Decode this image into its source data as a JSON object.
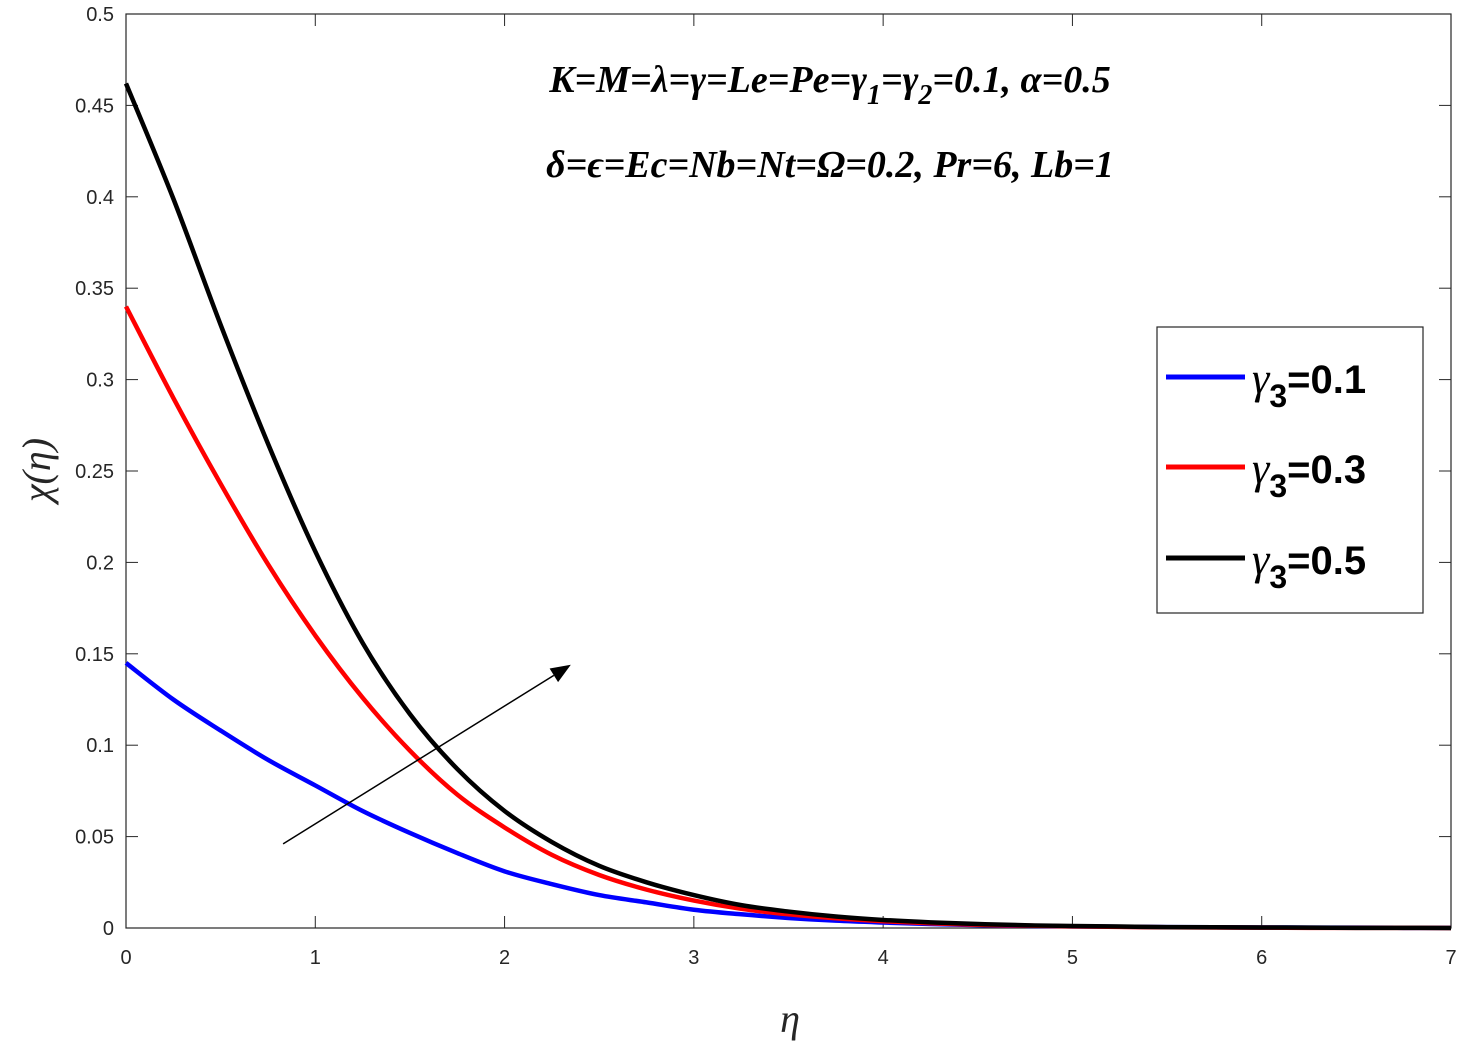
{
  "chart_data": {
    "type": "line",
    "xlabel": "η",
    "ylabel": "χ(η)",
    "xlim": [
      0,
      7
    ],
    "ylim": [
      0,
      0.5
    ],
    "xticks": [
      "0",
      "1",
      "2",
      "3",
      "4",
      "5",
      "6",
      "7"
    ],
    "yticks": [
      "0",
      "0.05",
      "0.1",
      "0.15",
      "0.2",
      "0.25",
      "0.3",
      "0.35",
      "0.4",
      "0.45",
      "0.5"
    ],
    "grid": false,
    "legend_position": "right",
    "annotations": [
      "K=M=λ=γ=Le=Pe=γ1=γ2=0.1, α=0.5",
      "δ=ϵ=Ec=Nb=Nt=Ω=0.2, Pr=6, Lb=1"
    ],
    "arrow": {
      "from": [
        0.83,
        0.046
      ],
      "to": [
        2.35,
        0.144
      ],
      "meaning": "increasing γ3"
    },
    "x": [
      0,
      0.25,
      0.5,
      0.75,
      1,
      1.25,
      1.5,
      1.75,
      2,
      2.25,
      2.5,
      2.75,
      3,
      3.25,
      3.5,
      3.75,
      4,
      4.25,
      4.5,
      4.75,
      5,
      5.25,
      5.5,
      5.75,
      6,
      6.25,
      6.5,
      6.75,
      7
    ],
    "series": [
      {
        "name": "γ3=0.1",
        "color": "#0000ff",
        "values": [
          0.145,
          0.125,
          0.108,
          0.092,
          0.078,
          0.064,
          0.052,
          0.041,
          0.031,
          0.024,
          0.018,
          0.014,
          0.01,
          0.0075,
          0.0055,
          0.004,
          0.003,
          0.0022,
          0.0016,
          0.0012,
          0.0009,
          0.0007,
          0.0005,
          0.0004,
          0.0003,
          0.0002,
          0.0002,
          0.0001,
          0.0001
        ]
      },
      {
        "name": "γ3=0.3",
        "color": "#ff0000",
        "values": [
          0.34,
          0.29,
          0.243,
          0.199,
          0.16,
          0.126,
          0.097,
          0.073,
          0.055,
          0.04,
          0.029,
          0.021,
          0.015,
          0.0105,
          0.0075,
          0.0053,
          0.0037,
          0.0026,
          0.0018,
          0.0013,
          0.0009,
          0.0006,
          0.0004,
          0.0003,
          0.0002,
          0.0001,
          0.0001,
          0.0001,
          0.0
        ]
      },
      {
        "name": "γ3=0.5",
        "color": "#000000",
        "values": [
          0.462,
          0.399,
          0.33,
          0.265,
          0.206,
          0.156,
          0.117,
          0.087,
          0.064,
          0.047,
          0.034,
          0.025,
          0.018,
          0.0125,
          0.009,
          0.0063,
          0.0044,
          0.0031,
          0.0022,
          0.0015,
          0.0011,
          0.0008,
          0.0005,
          0.0004,
          0.0003,
          0.0002,
          0.0001,
          0.0001,
          0.0
        ]
      }
    ]
  }
}
